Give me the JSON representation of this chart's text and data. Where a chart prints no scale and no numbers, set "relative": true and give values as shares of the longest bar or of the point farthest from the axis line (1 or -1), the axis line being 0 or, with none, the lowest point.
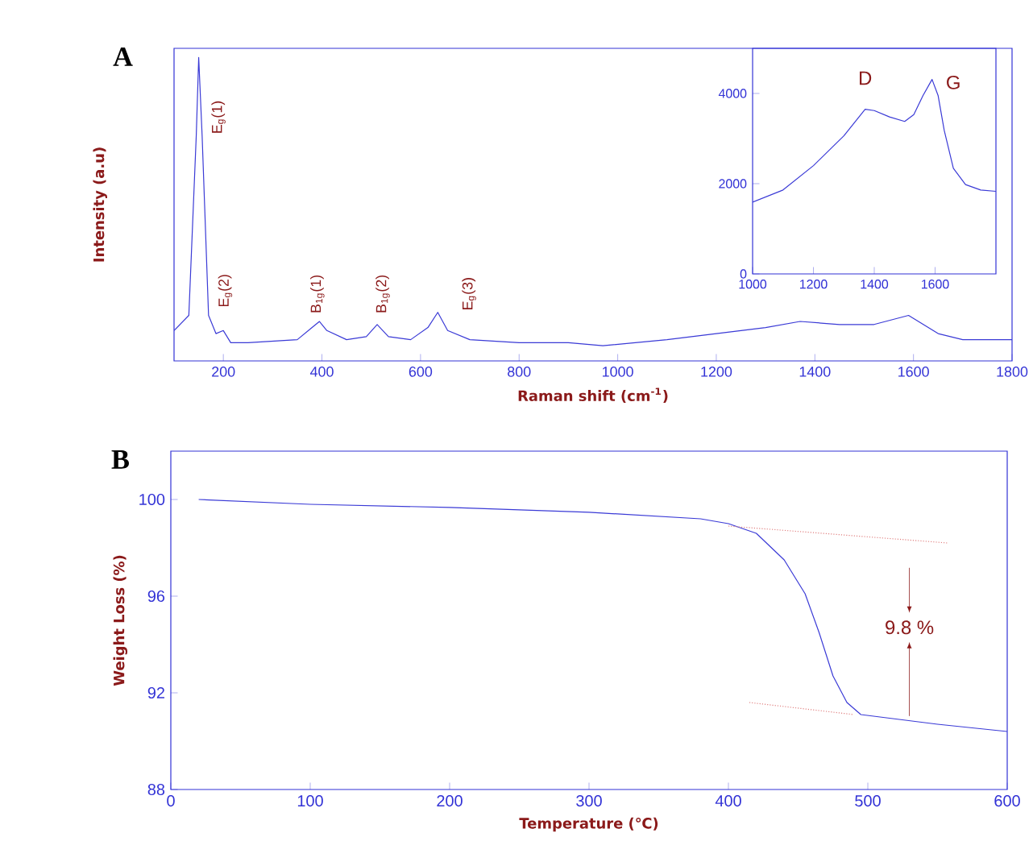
{
  "chart_data": [
    {
      "type": "line",
      "title": "A",
      "xlabel": "Raman shift (cm$^{-1}$)",
      "ylabel": "Intensity (a.u)",
      "relative": true,
      "tick_labels": "x",
      "xlim": [
        100,
        1800
      ],
      "xticks": [
        200,
        400,
        600,
        800,
        1000,
        1200,
        1400,
        1600,
        1800
      ],
      "series": [
        {
          "color": "#3a3ad6",
          "x": [
            100,
            130,
            145,
            150,
            157,
            170,
            185,
            200,
            215,
            250,
            350,
            380,
            395,
            410,
            450,
            490,
            512,
            535,
            580,
            615,
            635,
            655,
            700,
            800,
            900,
            970,
            1100,
            1200,
            1300,
            1370,
            1450,
            1520,
            1590,
            1650,
            1700,
            1800
          ],
          "values": [
            0.1,
            0.15,
            0.74,
            1.0,
            0.74,
            0.15,
            0.09,
            0.1,
            0.06,
            0.06,
            0.07,
            0.11,
            0.13,
            0.1,
            0.07,
            0.08,
            0.12,
            0.08,
            0.07,
            0.11,
            0.16,
            0.1,
            0.07,
            0.06,
            0.06,
            0.05,
            0.07,
            0.09,
            0.11,
            0.13,
            0.12,
            0.12,
            0.15,
            0.09,
            0.07,
            0.07
          ]
        }
      ],
      "annotations": [
        "E$_{g}$(1)",
        "E$_{g}$(2)",
        "B$_{1g}$(1)",
        "B$_{1g}$(2)",
        "E$_{g}$(3)"
      ]
    },
    {
      "type": "line",
      "xlim": [
        1000,
        1800
      ],
      "ylim": [
        0,
        5000
      ],
      "xticks": [
        1000,
        1200,
        1400,
        1600
      ],
      "yticks": [
        0,
        2000,
        4000
      ],
      "series": [
        {
          "color": "#3a3ad6",
          "x": [
            1000,
            1100,
            1200,
            1300,
            1370,
            1400,
            1450,
            1500,
            1530,
            1560,
            1590,
            1610,
            1630,
            1660,
            1700,
            1750,
            1800
          ],
          "values": [
            1590,
            1860,
            2400,
            3060,
            3650,
            3620,
            3480,
            3380,
            3530,
            3950,
            4310,
            3950,
            3180,
            2340,
            1980,
            1860,
            1830
          ]
        }
      ],
      "annotations": [
        "D",
        "G"
      ]
    },
    {
      "type": "line",
      "title": "B",
      "xlabel": "Temperature (℃)",
      "ylabel": "Weight Loss (%)",
      "xlim": [
        0,
        600
      ],
      "ylim": [
        88,
        102
      ],
      "xticks": [
        0,
        100,
        200,
        300,
        400,
        500,
        600
      ],
      "yticks": [
        88,
        92,
        96,
        100
      ],
      "series": [
        {
          "color": "#3a3ad6",
          "x": [
            20,
            100,
            200,
            300,
            380,
            400,
            420,
            440,
            455,
            465,
            475,
            485,
            495,
            550,
            600
          ],
          "values": [
            100.0,
            99.8,
            99.67,
            99.47,
            99.2,
            99.0,
            98.6,
            97.5,
            96.1,
            94.5,
            92.7,
            91.6,
            91.1,
            90.7,
            90.4
          ]
        },
        {
          "color": "#e08080",
          "line_style": "dotted",
          "x": [
            400,
            557
          ],
          "values": [
            98.9,
            98.2
          ]
        },
        {
          "color": "#e08080",
          "line_style": "dotted",
          "x": [
            415,
            490
          ],
          "values": [
            91.6,
            91.1
          ]
        }
      ],
      "annotations": [
        "9.8 %"
      ]
    }
  ]
}
